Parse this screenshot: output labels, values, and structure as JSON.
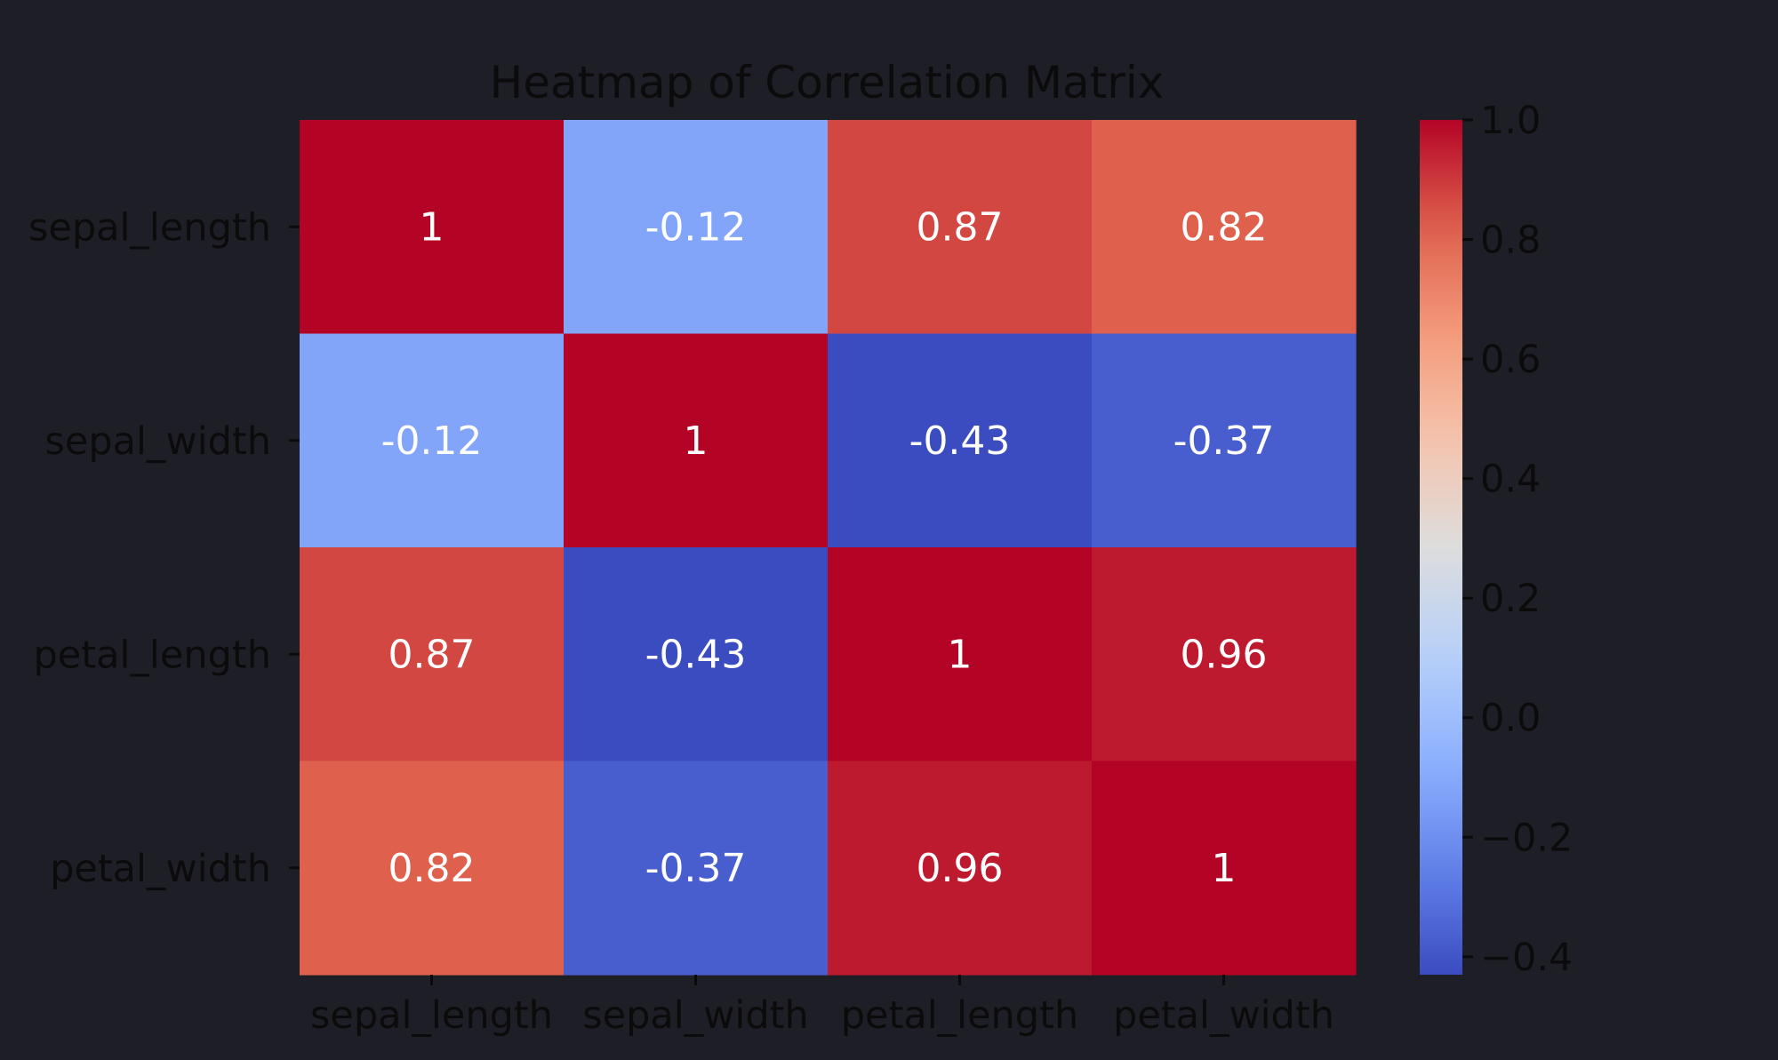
{
  "chart_data": {
    "type": "heatmap",
    "title": "Heatmap of Correlation Matrix",
    "x_labels": [
      "sepal_length",
      "sepal_width",
      "petal_length",
      "petal_width"
    ],
    "y_labels": [
      "sepal_length",
      "sepal_width",
      "petal_length",
      "petal_width"
    ],
    "values": [
      [
        1.0,
        -0.12,
        0.87,
        0.82
      ],
      [
        -0.12,
        1.0,
        -0.43,
        -0.37
      ],
      [
        0.87,
        -0.43,
        1.0,
        0.96
      ],
      [
        0.82,
        -0.37,
        0.96,
        1.0
      ]
    ],
    "annotations": [
      [
        "1",
        "-0.12",
        "0.87",
        "0.82"
      ],
      [
        "-0.12",
        "1",
        "-0.43",
        "-0.37"
      ],
      [
        "0.87",
        "-0.43",
        "1",
        "0.96"
      ],
      [
        "0.82",
        "-0.37",
        "0.96",
        "1"
      ]
    ],
    "colormap": "coolwarm",
    "vmin": -0.43,
    "vmax": 1.0,
    "colorbar_ticks": [
      1.0,
      0.8,
      0.6,
      0.4,
      0.2,
      0.0,
      -0.2,
      -0.4
    ],
    "colorbar_tick_labels": [
      "1.0",
      "0.8",
      "0.6",
      "0.4",
      "0.2",
      "0.0",
      "−0.2",
      "−0.4"
    ],
    "xlabel": "",
    "ylabel": ""
  },
  "colors": {
    "background": "#1e1e26",
    "text": "#0b0b0b",
    "annotation": "#ffffff"
  }
}
